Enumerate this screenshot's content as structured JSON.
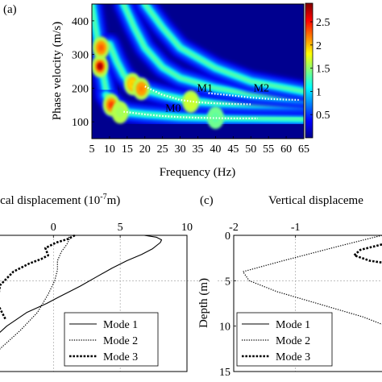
{
  "chart_data": [
    {
      "panel": "(a)",
      "type": "heatmap",
      "xlabel": "Frequency (Hz)",
      "ylabel": "Phase velocity (m/s)",
      "xlim": [
        5,
        65
      ],
      "ylim": [
        50,
        450
      ],
      "xticks": [
        5,
        10,
        15,
        20,
        25,
        30,
        35,
        40,
        45,
        50,
        55,
        60,
        65
      ],
      "yticks": [
        100,
        200,
        300,
        400
      ],
      "colorbar": {
        "ticks": [
          "0.5",
          "1",
          "1.5",
          "2",
          "2.5"
        ],
        "range": [
          0,
          2.9
        ],
        "colormap": "jet"
      },
      "annotations": [
        {
          "text": "M0",
          "x": 28,
          "y": 130
        },
        {
          "text": "M1",
          "x": 37,
          "y": 190
        },
        {
          "text": "M2",
          "x": 53,
          "y": 190
        }
      ],
      "picked_modes": [
        {
          "name": "M0",
          "points": [
            [
              14,
              130
            ],
            [
              20,
              122
            ],
            [
              25,
              117
            ],
            [
              30,
              114
            ],
            [
              35,
              112
            ],
            [
              40,
              111
            ],
            [
              45,
              110
            ],
            [
              50,
              110
            ],
            [
              52,
              110
            ]
          ]
        },
        {
          "name": "M1",
          "points": [
            [
              20,
              205
            ],
            [
              25,
              180
            ],
            [
              30,
              165
            ],
            [
              35,
              158
            ],
            [
              40,
              155
            ],
            [
              45,
              153
            ],
            [
              50,
              152
            ]
          ]
        },
        {
          "name": "M2",
          "points": [
            [
              38,
              185
            ],
            [
              45,
              178
            ],
            [
              50,
              172
            ],
            [
              55,
              168
            ],
            [
              60,
              166
            ],
            [
              64,
              165
            ]
          ]
        }
      ],
      "ridges": [
        {
          "points": [
            [
              5,
              450
            ],
            [
              6,
              380
            ],
            [
              7,
              320
            ],
            [
              8,
              250
            ],
            [
              9,
              195
            ],
            [
              10,
              165
            ],
            [
              11,
              145
            ]
          ]
        },
        {
          "points": [
            [
              9,
              180
            ],
            [
              10,
              170
            ],
            [
              12,
              145
            ],
            [
              15,
              128
            ],
            [
              20,
              122
            ],
            [
              30,
              114
            ],
            [
              40,
              111
            ],
            [
              50,
              110
            ],
            [
              65,
              108
            ]
          ]
        },
        {
          "points": [
            [
              10,
              330
            ],
            [
              12,
              280
            ],
            [
              14,
              240
            ],
            [
              16,
              215
            ],
            [
              20,
              195
            ],
            [
              25,
              180
            ],
            [
              30,
              168
            ],
            [
              35,
              160
            ],
            [
              40,
              156
            ],
            [
              50,
              152
            ],
            [
              65,
              150
            ]
          ]
        },
        {
          "points": [
            [
              14,
              450
            ],
            [
              17,
              380
            ],
            [
              20,
              320
            ],
            [
              25,
              262
            ],
            [
              30,
              230
            ],
            [
              40,
              200
            ],
            [
              50,
              182
            ],
            [
              65,
              168
            ]
          ]
        },
        {
          "points": [
            [
              20,
              450
            ],
            [
              25,
              380
            ],
            [
              30,
              320
            ],
            [
              40,
              260
            ],
            [
              50,
              220
            ],
            [
              65,
              190
            ]
          ]
        }
      ],
      "hotspots": [
        {
          "x": 7.3,
          "y": 265,
          "v": 2.8
        },
        {
          "x": 7.6,
          "y": 320,
          "v": 2.3
        },
        {
          "x": 10.5,
          "y": 150,
          "v": 2.4
        },
        {
          "x": 16.5,
          "y": 212,
          "v": 2.0
        },
        {
          "x": 19,
          "y": 198,
          "v": 2.2
        },
        {
          "x": 33,
          "y": 160,
          "v": 1.7
        },
        {
          "x": 40,
          "y": 112,
          "v": 1.4
        },
        {
          "x": 13,
          "y": 128,
          "v": 1.6
        }
      ]
    },
    {
      "panel": "(b)",
      "type": "line",
      "title": "ical displacement (10",
      "title_sup": "-7",
      "title_end": "m)",
      "xlim": [
        -4,
        10
      ],
      "ylim": [
        0,
        15
      ],
      "xticks": [
        0,
        5,
        10
      ],
      "series": [
        {
          "name": "Mode 1",
          "style": "solid",
          "points": [
            [
              -6,
              15
            ],
            [
              -5,
              12
            ],
            [
              -3.5,
              10
            ],
            [
              -2,
              8.5
            ],
            [
              -0.5,
              7.5
            ],
            [
              0.4,
              6.8
            ],
            [
              1.2,
              6.2
            ],
            [
              2,
              5.6
            ],
            [
              3.2,
              4.6
            ],
            [
              4.4,
              3.6
            ],
            [
              5.5,
              2.8
            ],
            [
              6.6,
              2.1
            ],
            [
              7.4,
              1.5
            ],
            [
              8.0,
              0.8
            ],
            [
              8.1,
              0.5
            ],
            [
              7.7,
              0.2
            ],
            [
              6.8,
              0
            ]
          ]
        },
        {
          "name": "Mode 2",
          "style": "dotted",
          "points": [
            [
              -5,
              15
            ],
            [
              -4,
              12.5
            ],
            [
              -2.5,
              10.5
            ],
            [
              -1.2,
              8.5
            ],
            [
              -0.4,
              6.5
            ],
            [
              0.1,
              5.0
            ],
            [
              0.3,
              3.8
            ],
            [
              0.3,
              2.8
            ],
            [
              0.6,
              1.8
            ],
            [
              1.0,
              1.0
            ],
            [
              1.2,
              0.4
            ],
            [
              1.1,
              0
            ]
          ]
        },
        {
          "name": "Mode 3",
          "style": "dashed",
          "points": [
            [
              -3.6,
              9.2
            ],
            [
              -4.2,
              7.5
            ],
            [
              -4.0,
              5.5
            ],
            [
              -3.0,
              4.0
            ],
            [
              -1.8,
              3.1
            ],
            [
              -0.9,
              2.6
            ],
            [
              -0.4,
              2.2
            ],
            [
              -0.6,
              1.4
            ],
            [
              0.2,
              0.8
            ],
            [
              1.1,
              0.4
            ],
            [
              1.6,
              0
            ]
          ]
        }
      ]
    },
    {
      "panel": "(c)",
      "type": "line",
      "title": "Vertical displaceme",
      "ylabel": "Depth (m)",
      "xlim": [
        -2,
        0.4
      ],
      "ylim": [
        0,
        15
      ],
      "xticks": [
        -2,
        -1
      ],
      "yticks": [
        0,
        5,
        10,
        15
      ],
      "series": [
        {
          "name": "Mode 1",
          "style": "solid",
          "points": []
        },
        {
          "name": "Mode 2",
          "style": "dotted",
          "points": [
            [
              0.4,
              0
            ],
            [
              -0.3,
              1.2
            ],
            [
              -1.2,
              2.8
            ],
            [
              -1.85,
              4.0
            ],
            [
              -1.75,
              5.0
            ],
            [
              -1.3,
              6.2
            ],
            [
              -0.6,
              7.6
            ],
            [
              0.1,
              9.0
            ],
            [
              0.4,
              9.8
            ]
          ]
        },
        {
          "name": "Mode 3",
          "style": "dashed",
          "points": [
            [
              0.4,
              1.0
            ],
            [
              0.05,
              1.6
            ],
            [
              -0.05,
              2.2
            ],
            [
              0.2,
              2.8
            ],
            [
              0.4,
              3.0
            ]
          ]
        }
      ]
    }
  ]
}
